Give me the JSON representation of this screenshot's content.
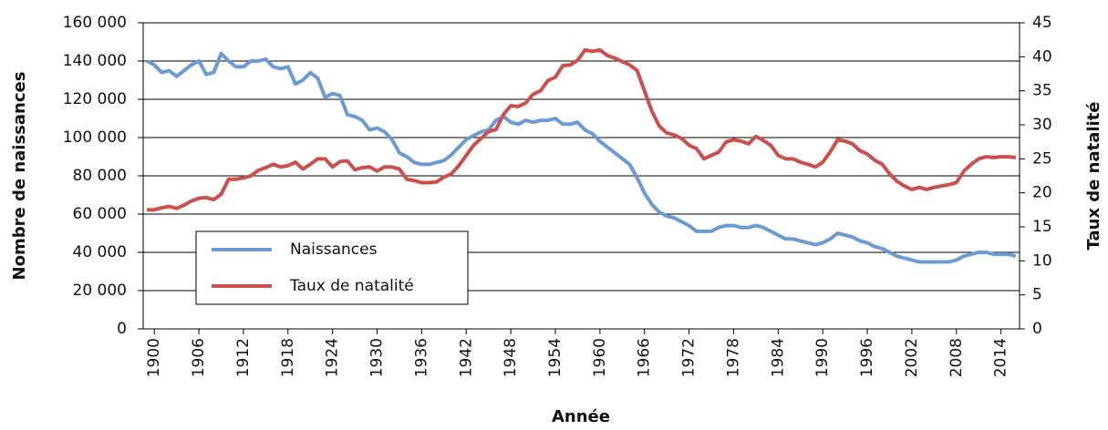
{
  "chart_data": {
    "type": "line",
    "xlabel": "Année",
    "ylabel": "Nombre de naissances",
    "y2label": "Taux de natalité",
    "x": [
      1899,
      1900,
      1901,
      1902,
      1903,
      1904,
      1905,
      1906,
      1907,
      1908,
      1909,
      1910,
      1911,
      1912,
      1913,
      1914,
      1915,
      1916,
      1917,
      1918,
      1919,
      1920,
      1921,
      1922,
      1923,
      1924,
      1925,
      1926,
      1927,
      1928,
      1929,
      1930,
      1931,
      1932,
      1933,
      1934,
      1935,
      1936,
      1937,
      1938,
      1939,
      1940,
      1941,
      1942,
      1943,
      1944,
      1945,
      1946,
      1947,
      1948,
      1949,
      1950,
      1951,
      1952,
      1953,
      1954,
      1955,
      1956,
      1957,
      1958,
      1959,
      1960,
      1961,
      1962,
      1963,
      1964,
      1965,
      1966,
      1967,
      1968,
      1969,
      1970,
      1971,
      1972,
      1973,
      1974,
      1975,
      1976,
      1977,
      1978,
      1979,
      1980,
      1981,
      1982,
      1983,
      1984,
      1985,
      1986,
      1987,
      1988,
      1989,
      1990,
      1991,
      1992,
      1993,
      1994,
      1995,
      1996,
      1997,
      1998,
      1999,
      2000,
      2001,
      2002,
      2003,
      2004,
      2005,
      2006,
      2007,
      2008,
      2009,
      2010,
      2011,
      2012,
      2013,
      2014,
      2015,
      2016
    ],
    "series": [
      {
        "name": "Naissances",
        "color": "#6b9bd2",
        "values": [
          140000,
          138000,
          134000,
          135000,
          132000,
          135000,
          138000,
          140000,
          133000,
          134000,
          144000,
          140000,
          137000,
          137000,
          140000,
          140000,
          141000,
          137000,
          136000,
          137000,
          128000,
          130000,
          134000,
          131000,
          121000,
          123000,
          122000,
          112000,
          111000,
          109000,
          104000,
          105000,
          103000,
          99000,
          92000,
          90000,
          87000,
          86000,
          86000,
          87000,
          88000,
          91000,
          95000,
          99000,
          101000,
          103000,
          104000,
          109000,
          111000,
          108000,
          107000,
          109000,
          108000,
          109000,
          109000,
          110000,
          107000,
          107000,
          108000,
          104000,
          102000,
          98000,
          95000,
          92000,
          89000,
          86000,
          79000,
          71000,
          65000,
          61000,
          59000,
          58000,
          56000,
          54000,
          51000,
          51000,
          51000,
          53000,
          54000,
          54000,
          53000,
          53000,
          54000,
          53000,
          51000,
          49000,
          47000,
          47000,
          46000,
          45000,
          44000,
          45000,
          47000,
          50000,
          49000,
          48000,
          46000,
          45000,
          43000,
          42000,
          40000,
          38000,
          37000,
          36000,
          35000,
          35000,
          35000,
          35000,
          35000,
          36000,
          38000,
          39000,
          40000,
          40000,
          39000,
          39000,
          39000,
          38000
        ]
      },
      {
        "name": "Taux de natalité",
        "color": "#c9504d",
        "axis": "y2",
        "values": [
          17.5,
          17.5,
          17.8,
          18,
          17.7,
          18.2,
          18.8,
          19.2,
          19.3,
          19,
          19.8,
          22,
          22,
          22.2,
          22.5,
          23.3,
          23.7,
          24.2,
          23.8,
          24,
          24.5,
          23.5,
          24.2,
          25,
          25,
          23.8,
          24.6,
          24.7,
          23.4,
          23.7,
          23.8,
          23.2,
          23.8,
          23.8,
          23.5,
          22,
          21.8,
          21.5,
          21.5,
          21.6,
          22.3,
          22.8,
          24,
          25.5,
          27,
          28,
          29,
          29.3,
          31.5,
          32.8,
          32.7,
          33.2,
          34.5,
          35,
          36.5,
          37,
          38.7,
          38.8,
          39.5,
          41,
          40.8,
          41,
          40.2,
          39.8,
          39.3,
          38.8,
          38,
          35,
          32,
          29.8,
          28.8,
          28.5,
          28,
          27,
          26.5,
          25,
          25.5,
          26,
          27.5,
          27.8,
          27.6,
          27.2,
          28.3,
          27.7,
          27,
          25.5,
          25,
          25,
          24.5,
          24.2,
          23.8,
          24.5,
          26,
          27.8,
          27.6,
          27.2,
          26.2,
          25.7,
          24.8,
          24.2,
          22.8,
          21.7,
          21,
          20.5,
          20.8,
          20.5,
          20.8,
          21,
          21.2,
          21.5,
          23.2,
          24.2,
          25,
          25.3,
          25.2,
          25.3,
          25.3,
          25.2
        ]
      }
    ],
    "xlim": [
      1898.5,
      2016.5
    ],
    "xticks": [
      1900,
      1906,
      1912,
      1918,
      1924,
      1930,
      1936,
      1942,
      1948,
      1954,
      1960,
      1966,
      1972,
      1978,
      1984,
      1990,
      1996,
      2002,
      2008,
      2014
    ],
    "ylim": [
      0,
      160000
    ],
    "yticks": [
      0,
      {
        "value": 20000,
        "label": "20 000"
      },
      {
        "value": 40000,
        "label": "40 000"
      },
      {
        "value": 60000,
        "label": "60 000"
      },
      {
        "value": 80000,
        "label": "80 000"
      },
      {
        "value": 100000,
        "label": "100 000"
      },
      {
        "value": 120000,
        "label": "120 000"
      },
      {
        "value": 140000,
        "label": "140 000"
      },
      {
        "value": 160000,
        "label": "160 000"
      }
    ],
    "y2lim": [
      0,
      45
    ],
    "y2ticks": [
      0,
      5,
      10,
      15,
      20,
      25,
      30,
      35,
      40,
      45
    ],
    "grid": true,
    "legend": "lower left"
  }
}
